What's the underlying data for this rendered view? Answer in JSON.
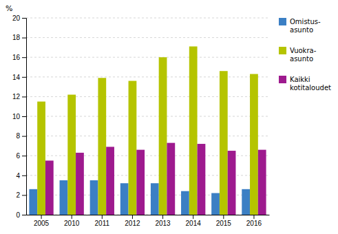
{
  "chart_data": {
    "type": "bar",
    "ylabel": "%",
    "categories": [
      "2005",
      "2010",
      "2011",
      "2012",
      "2013",
      "2014",
      "2015",
      "2016"
    ],
    "series": [
      {
        "name": "Omistus-\nasunto",
        "color": "#3B7FC4",
        "values": [
          2.6,
          3.5,
          3.5,
          3.2,
          3.2,
          2.4,
          2.2,
          2.6
        ]
      },
      {
        "name": "Vuokra-\nasunto",
        "color": "#B5C400",
        "values": [
          11.5,
          12.2,
          13.9,
          13.6,
          16.0,
          17.1,
          14.6,
          14.3
        ]
      },
      {
        "name": "Kaikki\nkotitaloudet",
        "color": "#9E1A8E",
        "values": [
          5.5,
          6.3,
          6.9,
          6.6,
          7.3,
          7.2,
          6.5,
          6.6
        ]
      }
    ],
    "ylim": [
      0,
      20
    ],
    "yticks": [
      0,
      2,
      4,
      6,
      8,
      10,
      12,
      14,
      16,
      18,
      20
    ],
    "grid": true,
    "legend": "right"
  }
}
